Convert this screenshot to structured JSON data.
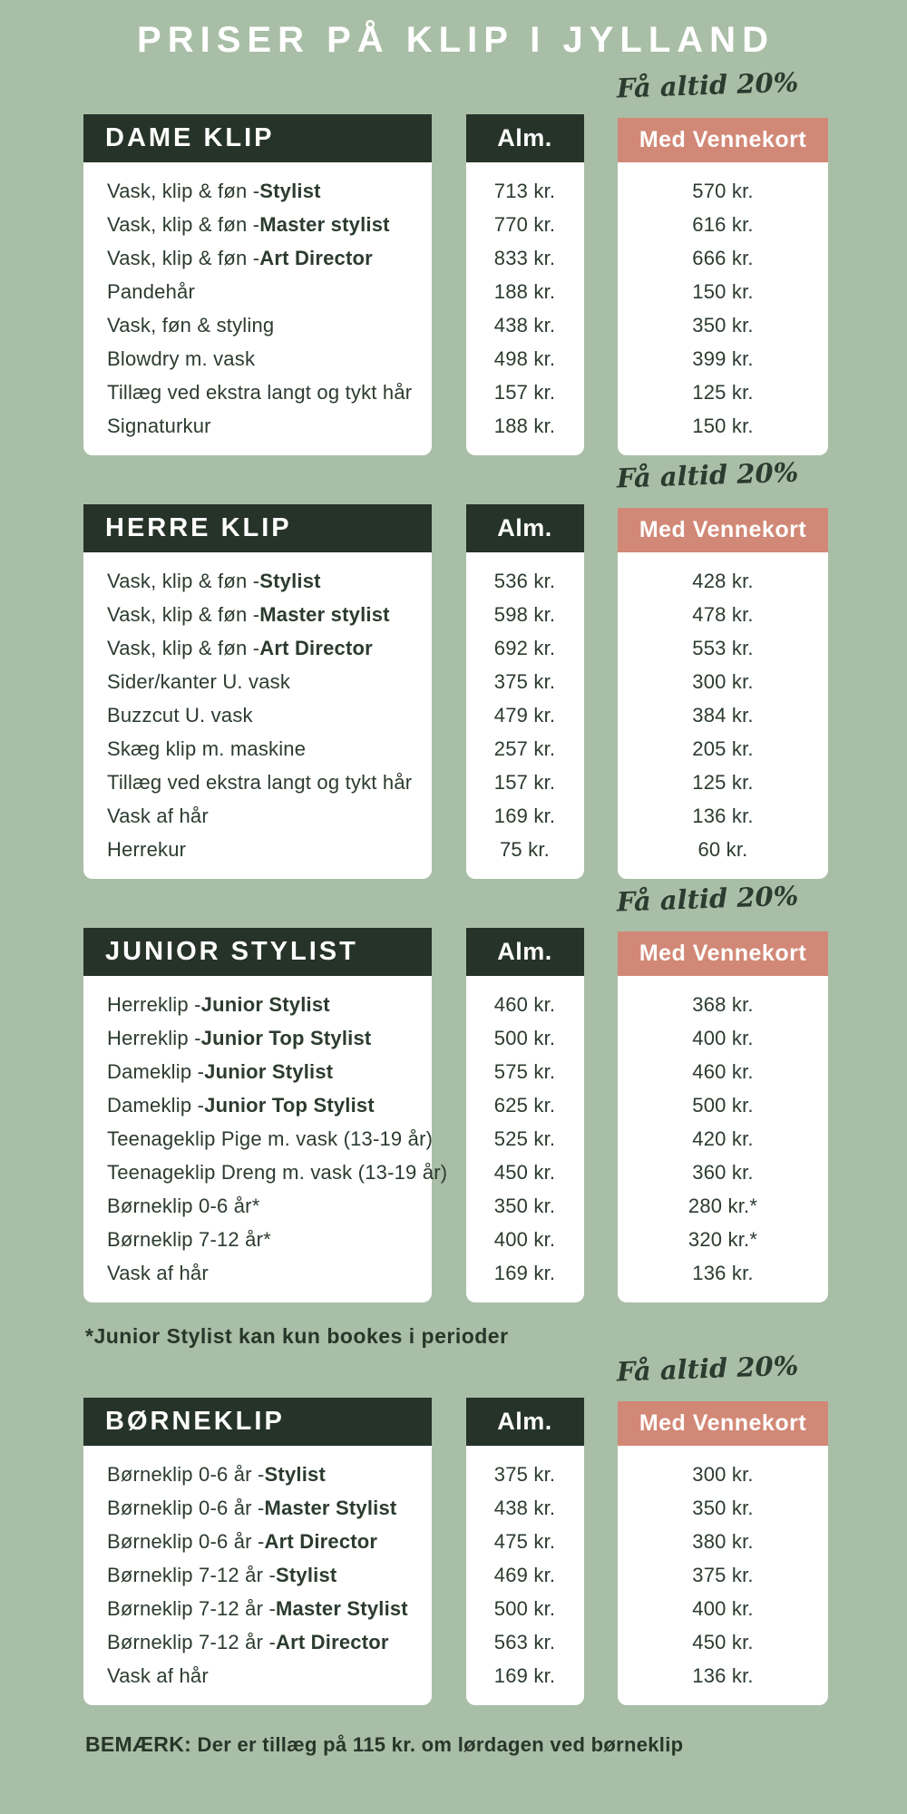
{
  "title": "PRISER PÅ KLIP I JYLLAND",
  "badge_text": "Få altid 20%",
  "columns": {
    "alm": "Alm.",
    "venne": "Med Vennekort"
  },
  "colors": {
    "background": "#a9bea6",
    "dark_green": "#263329",
    "salmon": "#d28876",
    "text": "#2c3b2f",
    "card": "#ffffff"
  },
  "sections": [
    {
      "name": "DAME KLIP",
      "rows": [
        {
          "label": "Vask, klip & føn - ",
          "bold": "Stylist",
          "alm": "713 kr.",
          "venne": "570 kr."
        },
        {
          "label": "Vask, klip & føn - ",
          "bold": "Master stylist",
          "alm": "770 kr.",
          "venne": "616 kr."
        },
        {
          "label": "Vask, klip & føn - ",
          "bold": "Art Director",
          "alm": "833 kr.",
          "venne": "666 kr."
        },
        {
          "label": "Pandehår",
          "bold": "",
          "alm": "188 kr.",
          "venne": "150 kr."
        },
        {
          "label": "Vask, føn & styling",
          "bold": "",
          "alm": "438 kr.",
          "venne": "350 kr."
        },
        {
          "label": "Blowdry m. vask",
          "bold": "",
          "alm": "498 kr.",
          "venne": "399 kr."
        },
        {
          "label": "Tillæg ved ekstra langt og tykt hår",
          "bold": "",
          "alm": "157 kr.",
          "venne": "125 kr."
        },
        {
          "label": "Signaturkur",
          "bold": "",
          "alm": "188 kr.",
          "venne": "150 kr."
        }
      ],
      "footnote_after": ""
    },
    {
      "name": "HERRE KLIP",
      "rows": [
        {
          "label": "Vask, klip & føn - ",
          "bold": "Stylist",
          "alm": "536 kr.",
          "venne": "428 kr."
        },
        {
          "label": "Vask, klip & føn - ",
          "bold": "Master stylist",
          "alm": "598 kr.",
          "venne": "478 kr."
        },
        {
          "label": "Vask, klip & føn - ",
          "bold": "Art Director",
          "alm": "692 kr.",
          "venne": "553 kr."
        },
        {
          "label": "Sider/kanter U. vask",
          "bold": "",
          "alm": "375 kr.",
          "venne": "300 kr."
        },
        {
          "label": "Buzzcut U. vask",
          "bold": "",
          "alm": "479 kr.",
          "venne": "384 kr."
        },
        {
          "label": "Skæg klip m. maskine",
          "bold": "",
          "alm": "257 kr.",
          "venne": "205 kr."
        },
        {
          "label": "Tillæg ved ekstra langt og tykt hår",
          "bold": "",
          "alm": "157 kr.",
          "venne": "125 kr."
        },
        {
          "label": "Vask af hår",
          "bold": "",
          "alm": "169 kr.",
          "venne": "136 kr."
        },
        {
          "label": "Herrekur",
          "bold": "",
          "alm": "75 kr.",
          "venne": "60 kr."
        }
      ],
      "footnote_after": ""
    },
    {
      "name": "JUNIOR STYLIST",
      "rows": [
        {
          "label": "Herreklip - ",
          "bold": "Junior Stylist",
          "alm": "460 kr.",
          "venne": "368 kr."
        },
        {
          "label": "Herreklip - ",
          "bold": "Junior Top Stylist",
          "alm": "500 kr.",
          "venne": "400 kr."
        },
        {
          "label": "Dameklip - ",
          "bold": "Junior Stylist",
          "alm": "575 kr.",
          "venne": "460 kr."
        },
        {
          "label": "Dameklip - ",
          "bold": "Junior Top Stylist",
          "alm": "625 kr.",
          "venne": "500 kr."
        },
        {
          "label": "Teenageklip Pige m. vask (13-19 år)",
          "bold": "",
          "alm": "525 kr.",
          "venne": "420 kr."
        },
        {
          "label": "Teenageklip Dreng m. vask (13-19 år)",
          "bold": "",
          "alm": "450 kr.",
          "venne": "360 kr."
        },
        {
          "label": "Børneklip 0-6 år*",
          "bold": "",
          "alm": "350 kr.",
          "venne": "280 kr.*"
        },
        {
          "label": "Børneklip 7-12 år*",
          "bold": "",
          "alm": "400 kr.",
          "venne": "320 kr.*"
        },
        {
          "label": "Vask af hår",
          "bold": "",
          "alm": "169 kr.",
          "venne": "136 kr."
        }
      ],
      "footnote_after": "*Junior Stylist kan kun bookes i perioder"
    },
    {
      "name": "BØRNEKLIP",
      "rows": [
        {
          "label": "Børneklip 0-6 år - ",
          "bold": "Stylist",
          "alm": "375 kr.",
          "venne": "300 kr."
        },
        {
          "label": "Børneklip 0-6 år - ",
          "bold": "Master Stylist",
          "alm": "438 kr.",
          "venne": "350 kr."
        },
        {
          "label": "Børneklip 0-6 år - ",
          "bold": "Art Director",
          "alm": "475 kr.",
          "venne": "380 kr."
        },
        {
          "label": "Børneklip 7-12 år - ",
          "bold": "Stylist",
          "alm": "469 kr.",
          "venne": "375 kr."
        },
        {
          "label": "Børneklip 7-12 år - ",
          "bold": "Master Stylist",
          "alm": "500 kr.",
          "venne": "400 kr."
        },
        {
          "label": "Børneklip 7-12 år - ",
          "bold": "Art Director",
          "alm": "563 kr.",
          "venne": "450 kr."
        },
        {
          "label": "Vask af hår",
          "bold": "",
          "alm": "169 kr.",
          "venne": "136 kr."
        }
      ],
      "footnote_after": ""
    }
  ],
  "bottom_note": {
    "bold": "BEMÆRK:",
    "text": " Der er tillæg på 115 kr. om lørdagen ved børneklip"
  }
}
